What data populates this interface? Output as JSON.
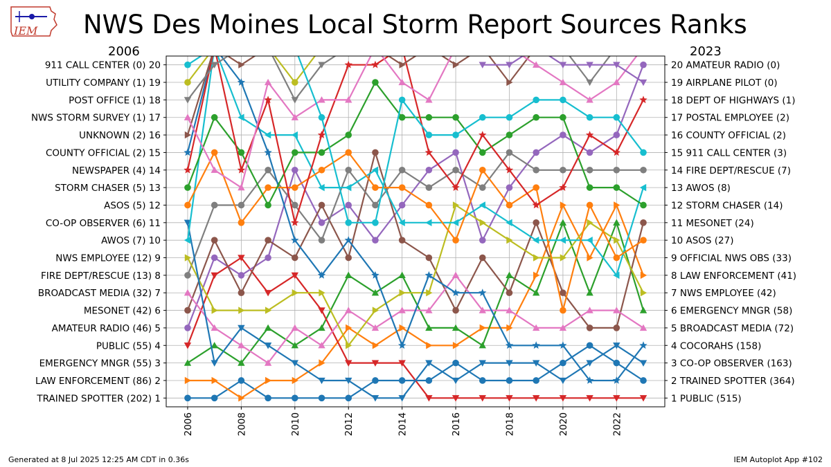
{
  "header": {
    "title": "NWS Des Moines Local Storm Report Sources Ranks",
    "left_year": "2006",
    "right_year": "2023",
    "logo_text": "IEM"
  },
  "footer": {
    "generated": "Generated at 8 Jul 2025 12:25 AM CDT in 0.36s",
    "app": "IEM Autoplot App #102"
  },
  "colors": {
    "series": [
      "#1f77b4",
      "#ff7f0e",
      "#2ca02c",
      "#d62728",
      "#9467bd",
      "#8c564b",
      "#e377c2",
      "#7f7f7f",
      "#bcbd22",
      "#17becf"
    ],
    "grid": "#b0b0b0"
  },
  "chart_data": {
    "type": "line",
    "xlim": [
      2005.2,
      2023.8
    ],
    "ylim": [
      0.5,
      20.5
    ],
    "x_ticks": [
      2006,
      2008,
      2010,
      2012,
      2014,
      2016,
      2018,
      2020,
      2022
    ],
    "grid": true,
    "left_labels": [
      "TRAINED SPOTTER (202) 1",
      "LAW ENFORCEMENT (86) 2",
      "EMERGENCY MNGR (55) 3",
      "PUBLIC (55) 4",
      "AMATEUR RADIO (46) 5",
      "MESONET (42) 6",
      "BROADCAST MEDIA (32) 7",
      "FIRE DEPT/RESCUE (13) 8",
      "NWS EMPLOYEE (12) 9",
      "AWOS (7) 10",
      "CO-OP OBSERVER (6) 11",
      "ASOS (5) 12",
      "STORM CHASER (5) 13",
      "NEWSPAPER (4) 14",
      "COUNTY OFFICIAL (2) 15",
      "UNKNOWN (2) 16",
      "NWS STORM SURVEY (1) 17",
      "POST OFFICE (1) 18",
      "UTILITY COMPANY (1) 19",
      "911 CALL CENTER (0) 20"
    ],
    "right_labels": [
      "1 PUBLIC (515)",
      "2 TRAINED SPOTTER (364)",
      "3 CO-OP OBSERVER (163)",
      "4 COCORAHS (158)",
      "5 BROADCAST MEDIA (72)",
      "6 EMERGENCY MNGR (58)",
      "7 NWS EMPLOYEE (42)",
      "8 LAW ENFORCEMENT (41)",
      "9 OFFICIAL NWS OBS (33)",
      "10 ASOS (27)",
      "11 MESONET (24)",
      "12 STORM CHASER (14)",
      "13 AWOS (8)",
      "14 FIRE DEPT/RESCUE (7)",
      "15 911 CALL CENTER (3)",
      "16 COUNTY OFFICIAL (2)",
      "17 POSTAL EMPLOYEE (2)",
      "18 DEPT OF HIGHWAYS (1)",
      "19 AIRPLANE PILOT (0)",
      "20 AMATEUR RADIO (0)"
    ],
    "series": [
      {
        "marker": "circle",
        "color_index": 0,
        "x": [
          2006,
          2007,
          2008,
          2009,
          2010,
          2011,
          2012,
          2013,
          2014,
          2015,
          2016,
          2017,
          2018,
          2019,
          2020,
          2021,
          2022,
          2023
        ],
        "values": [
          1,
          1,
          2,
          1,
          1,
          1,
          1,
          2,
          2,
          2,
          3,
          2,
          2,
          2,
          3,
          4,
          3,
          2
        ]
      },
      {
        "marker": "triangle-right",
        "color_index": 1,
        "x": [
          2006,
          2007,
          2008,
          2009,
          2010,
          2011,
          2012,
          2013,
          2014,
          2015,
          2016,
          2017,
          2018,
          2019,
          2020,
          2021,
          2022,
          2023
        ],
        "values": [
          2,
          2,
          1,
          2,
          2,
          3,
          5,
          4,
          5,
          4,
          4,
          5,
          5,
          8,
          12,
          9,
          12,
          8
        ]
      },
      {
        "marker": "triangle-up",
        "color_index": 2,
        "x": [
          2006,
          2007,
          2008,
          2009,
          2010,
          2011,
          2012,
          2013,
          2014,
          2015,
          2016,
          2017,
          2018,
          2019,
          2020,
          2021,
          2022,
          2023
        ],
        "values": [
          3,
          4,
          3,
          5,
          4,
          5,
          8,
          7,
          8,
          5,
          5,
          4,
          8,
          7,
          11,
          7,
          11,
          6
        ]
      },
      {
        "marker": "triangle-down",
        "color_index": 3,
        "x": [
          2006,
          2007,
          2008,
          2009,
          2010,
          2011,
          2012,
          2013,
          2014,
          2015,
          2016,
          2017,
          2018,
          2019,
          2020,
          2021,
          2022,
          2023
        ],
        "values": [
          4,
          8,
          9,
          7,
          8,
          6,
          3,
          3,
          3,
          1,
          1,
          1,
          1,
          1,
          1,
          1,
          1,
          1
        ]
      },
      {
        "marker": "circle",
        "color_index": 4,
        "x": [
          2006,
          2007,
          2008,
          2009,
          2010,
          2011,
          2012,
          2013,
          2014,
          2015,
          2016,
          2017,
          2018,
          2019,
          2020,
          2021,
          2022,
          2023
        ],
        "values": [
          5,
          9,
          8,
          9,
          14,
          11,
          12,
          10,
          12,
          14,
          15,
          10,
          13,
          15,
          16,
          15,
          16,
          20
        ]
      },
      {
        "marker": "circle",
        "color_index": 5,
        "x": [
          2006,
          2007,
          2008,
          2009,
          2010,
          2011,
          2012,
          2013,
          2014,
          2015,
          2016,
          2017,
          2018,
          2019,
          2020,
          2021,
          2022,
          2023
        ],
        "values": [
          6,
          10,
          7,
          10,
          9,
          12,
          9,
          15,
          10,
          9,
          6,
          9,
          7,
          11,
          7,
          5,
          5,
          11
        ]
      },
      {
        "marker": "triangle-up",
        "color_index": 6,
        "x": [
          2006,
          2007,
          2008,
          2009,
          2010,
          2011,
          2012,
          2013,
          2014,
          2015,
          2016,
          2017,
          2018,
          2019,
          2020,
          2021,
          2022,
          2023
        ],
        "values": [
          7,
          5,
          4,
          3,
          5,
          4,
          6,
          5,
          6,
          6,
          8,
          6,
          6,
          5,
          5,
          6,
          6,
          5
        ]
      },
      {
        "marker": "circle",
        "color_index": 7,
        "x": [
          2006,
          2007,
          2008,
          2009,
          2010,
          2011,
          2012,
          2013,
          2014,
          2015,
          2016,
          2017,
          2018,
          2019,
          2020,
          2021,
          2022,
          2023
        ],
        "values": [
          8,
          12,
          12,
          14,
          12,
          10,
          14,
          12,
          14,
          13,
          14,
          13,
          15,
          14,
          14,
          14,
          14,
          14
        ]
      },
      {
        "marker": "triangle-right",
        "color_index": 8,
        "x": [
          2006,
          2007,
          2008,
          2009,
          2010,
          2011,
          2012,
          2013,
          2014,
          2015,
          2016,
          2017,
          2018,
          2019,
          2020,
          2021,
          2022,
          2023
        ],
        "values": [
          9,
          6,
          6,
          6,
          7,
          7,
          4,
          6,
          7,
          7,
          12,
          11,
          10,
          9,
          9,
          11,
          10,
          7
        ]
      },
      {
        "marker": "triangle-down",
        "color_index": 0,
        "x": [
          2006,
          2007,
          2008,
          2009,
          2010,
          2011,
          2012,
          2013,
          2014,
          2015,
          2016,
          2017,
          2018,
          2019,
          2020,
          2021,
          2022,
          2023
        ],
        "values": [
          11,
          3,
          5,
          4,
          3,
          2,
          2,
          1,
          1,
          3,
          2,
          3,
          3,
          3,
          2,
          3,
          4,
          3
        ]
      },
      {
        "marker": "triangle-left",
        "color_index": 9,
        "x": [
          2006,
          2007,
          2008,
          2009,
          2010,
          2011,
          2012,
          2013,
          2014,
          2015,
          2016,
          2017,
          2018,
          2019,
          2020,
          2021,
          2022,
          2023
        ],
        "values": [
          10,
          21,
          17,
          16,
          16,
          13,
          13,
          14,
          11,
          11,
          11,
          12,
          11,
          10,
          10,
          10,
          8,
          13
        ]
      },
      {
        "marker": "star",
        "color_index": 0,
        "x": [
          2006,
          2007,
          2008,
          2009,
          2010,
          2011,
          2012,
          2013,
          2014,
          2015,
          2016,
          2017,
          2018,
          2019,
          2020,
          2021,
          2022,
          2023
        ],
        "values": [
          15,
          21,
          19,
          15,
          10,
          8,
          10,
          8,
          4,
          8,
          7,
          7,
          4,
          4,
          4,
          2,
          2,
          4
        ]
      },
      {
        "marker": "circle",
        "color_index": 1,
        "x": [
          2006,
          2007,
          2008,
          2009,
          2010,
          2011,
          2012,
          2013,
          2014,
          2015,
          2016,
          2017,
          2018,
          2019,
          2020,
          2021,
          2022,
          2023
        ],
        "values": [
          12,
          15,
          11,
          13,
          13,
          14,
          15,
          13,
          13,
          12,
          10,
          14,
          12,
          13,
          6,
          12,
          9,
          10
        ]
      },
      {
        "marker": "circle",
        "color_index": 2,
        "x": [
          2006,
          2007,
          2008,
          2009,
          2010,
          2011,
          2012,
          2013,
          2014,
          2015,
          2016,
          2017,
          2018,
          2019,
          2020,
          2021,
          2022,
          2023
        ],
        "values": [
          13,
          17,
          15,
          12,
          15,
          15,
          16,
          19,
          17,
          17,
          17,
          15,
          16,
          17,
          17,
          13,
          13,
          12
        ]
      },
      {
        "marker": "star",
        "color_index": 3,
        "x": [
          2006,
          2007,
          2008,
          2009,
          2010,
          2011,
          2012,
          2013,
          2014,
          2015,
          2016,
          2017,
          2018,
          2019,
          2020,
          2021,
          2022,
          2023
        ],
        "values": [
          14,
          21,
          14,
          18,
          11,
          16,
          20,
          20,
          21,
          15,
          13,
          16,
          14,
          12,
          13,
          16,
          15,
          18
        ]
      },
      {
        "marker": "triangle-right",
        "color_index": 5,
        "x": [
          2006,
          2007,
          2008,
          2009,
          2010,
          2011,
          2012,
          2013,
          2014,
          2015,
          2016,
          2017,
          2018,
          2019,
          2020,
          2021,
          2022,
          2023
        ],
        "values": [
          16,
          21,
          20,
          21,
          21,
          21,
          21,
          21,
          20,
          21,
          20,
          21,
          19,
          21,
          21,
          21,
          21,
          21
        ]
      },
      {
        "marker": "triangle-up",
        "color_index": 6,
        "x": [
          2006,
          2007,
          2008,
          2009,
          2010,
          2011,
          2012,
          2013,
          2014,
          2015,
          2016,
          2017,
          2018,
          2019,
          2020,
          2021,
          2022,
          2023
        ],
        "values": [
          17,
          14,
          13,
          19,
          17,
          18,
          18,
          21,
          19,
          18,
          21,
          21,
          21,
          20,
          19,
          18,
          19,
          21
        ]
      },
      {
        "marker": "triangle-down",
        "color_index": 7,
        "x": [
          2006,
          2007,
          2008,
          2009,
          2010,
          2011,
          2012,
          2013,
          2014,
          2015,
          2016,
          2017,
          2018,
          2019,
          2020,
          2021,
          2022,
          2023
        ],
        "values": [
          18,
          20,
          21,
          21,
          18,
          20,
          21,
          21,
          21,
          21,
          21,
          21,
          21,
          21,
          21,
          19,
          21,
          21
        ]
      },
      {
        "marker": "circle",
        "color_index": 8,
        "x": [
          2006,
          2007,
          2008,
          2009,
          2010,
          2011,
          2012,
          2013,
          2014,
          2015,
          2016,
          2017,
          2018,
          2019,
          2020,
          2021,
          2022,
          2023
        ],
        "values": [
          19,
          21,
          21,
          21,
          19,
          21,
          21,
          21,
          21,
          21,
          21,
          21,
          21,
          21,
          21,
          21,
          21,
          21
        ]
      },
      {
        "marker": "circle",
        "color_index": 9,
        "x": [
          2006,
          2007,
          2008,
          2009,
          2010,
          2011,
          2012,
          2013,
          2014,
          2015,
          2016,
          2017,
          2018,
          2019,
          2020,
          2021,
          2022,
          2023
        ],
        "values": [
          20,
          21,
          21,
          21,
          21,
          17,
          11,
          11,
          18,
          16,
          16,
          17,
          17,
          18,
          18,
          17,
          17,
          15
        ]
      },
      {
        "marker": "triangle-down",
        "color_index": 4,
        "x": [
          2017,
          2018,
          2019,
          2020,
          2021,
          2022,
          2023
        ],
        "values": [
          20,
          20,
          21,
          20,
          20,
          20,
          19
        ]
      }
    ]
  }
}
